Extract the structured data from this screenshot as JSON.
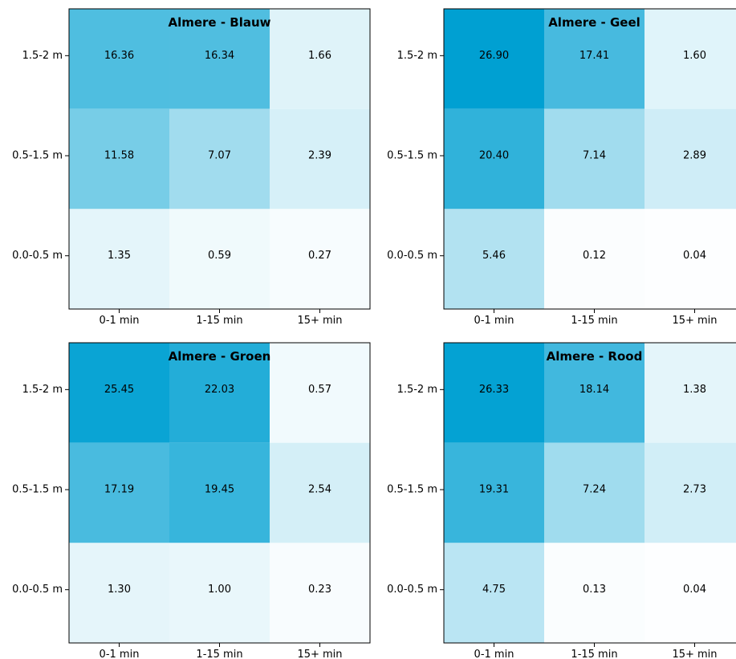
{
  "chart_data": [
    {
      "type": "heatmap",
      "title": "Almere - Blauw",
      "x_categories": [
        "0-1 min",
        "1-15 min",
        "15+ min"
      ],
      "y_categories": [
        "1.5-2 m",
        "0.5-1.5 m",
        "0.0-0.5 m"
      ],
      "values": [
        [
          16.36,
          16.34,
          1.66
        ],
        [
          11.58,
          7.07,
          2.39
        ],
        [
          1.35,
          0.59,
          0.27
        ]
      ],
      "value_labels": [
        [
          "16.36",
          "16.34",
          "1.66"
        ],
        [
          "11.58",
          "7.07",
          "2.39"
        ],
        [
          "1.35",
          "0.59",
          "0.27"
        ]
      ]
    },
    {
      "type": "heatmap",
      "title": "Almere - Geel",
      "x_categories": [
        "0-1 min",
        "1-15 min",
        "15+ min"
      ],
      "y_categories": [
        "1.5-2 m",
        "0.5-1.5 m",
        "0.0-0.5 m"
      ],
      "values": [
        [
          26.9,
          17.41,
          1.6
        ],
        [
          20.4,
          7.14,
          2.89
        ],
        [
          5.46,
          0.12,
          0.04
        ]
      ],
      "value_labels": [
        [
          "26.90",
          "17.41",
          "1.60"
        ],
        [
          "20.40",
          "7.14",
          "2.89"
        ],
        [
          "5.46",
          "0.12",
          "0.04"
        ]
      ]
    },
    {
      "type": "heatmap",
      "title": "Almere - Groen",
      "x_categories": [
        "0-1 min",
        "1-15 min",
        "15+ min"
      ],
      "y_categories": [
        "1.5-2 m",
        "0.5-1.5 m",
        "0.0-0.5 m"
      ],
      "values": [
        [
          25.45,
          22.03,
          0.57
        ],
        [
          17.19,
          19.45,
          2.54
        ],
        [
          1.3,
          1.0,
          0.23
        ]
      ],
      "value_labels": [
        [
          "25.45",
          "22.03",
          "0.57"
        ],
        [
          "17.19",
          "19.45",
          "2.54"
        ],
        [
          "1.30",
          "1.00",
          "0.23"
        ]
      ]
    },
    {
      "type": "heatmap",
      "title": "Almere - Rood",
      "x_categories": [
        "0-1 min",
        "1-15 min",
        "15+ min"
      ],
      "y_categories": [
        "1.5-2 m",
        "0.5-1.5 m",
        "0.0-0.5 m"
      ],
      "values": [
        [
          26.33,
          18.14,
          1.38
        ],
        [
          19.31,
          7.24,
          2.73
        ],
        [
          4.75,
          0.13,
          0.04
        ]
      ],
      "value_labels": [
        [
          "26.33",
          "18.14",
          "1.38"
        ],
        [
          "19.31",
          "7.24",
          "2.73"
        ],
        [
          "4.75",
          "0.13",
          "0.04"
        ]
      ]
    }
  ],
  "colors": {
    "high": "#00a0d2",
    "low": "#ffffff",
    "axis": "#000000",
    "text": "#000000"
  }
}
